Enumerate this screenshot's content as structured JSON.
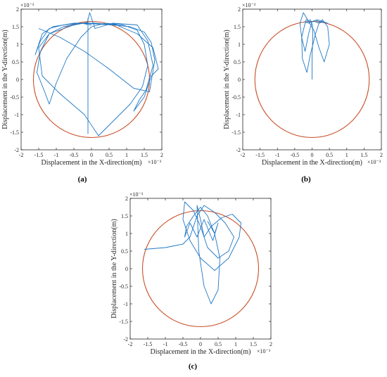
{
  "figure": {
    "panels": [
      {
        "label": "(a)"
      },
      {
        "label": "(b)"
      },
      {
        "label": "(c)"
      }
    ]
  },
  "colors": {
    "trajectory": "#1f77c4",
    "boundary": "#c8502a",
    "axes": "#262626",
    "label_text": "#000000"
  },
  "chart_data": [
    {
      "type": "line",
      "panel": "(a)",
      "xlabel": "Displacement in the X-direction(m)",
      "ylabel": "Displacement in the Y-direction(m)",
      "x_exponent": "×10⁻³",
      "y_exponent": "×10⁻³",
      "xlim": [
        -2,
        2
      ],
      "ylim": [
        -2,
        2
      ],
      "xticks": [
        "-2",
        "-1.5",
        "-1",
        "-0.5",
        "0",
        "0.5",
        "1",
        "1.5",
        "2"
      ],
      "yticks": [
        "-2",
        "-1.5",
        "-1",
        "-0.5",
        "0",
        "0.5",
        "1",
        "1.5",
        "2"
      ],
      "circle": {
        "cx": 0,
        "cy": 0,
        "r": 1.65
      },
      "series": [
        {
          "x": [
            0.0,
            -0.3,
            -0.8,
            -1.2,
            -1.45,
            -1.55,
            -1.35,
            -1.2,
            -1.0,
            -0.7,
            -0.3,
            0.0,
            0.4,
            0.9,
            1.3,
            1.5,
            1.6,
            1.45,
            1.1,
            0.6,
            0.2,
            -0.2,
            -0.9,
            -1.4,
            -1.5,
            -1.2,
            -0.5,
            -0.12,
            -0.05,
            0.1,
            0.6,
            1.3,
            1.6,
            1.75,
            1.55,
            1.35,
            1.2,
            1.5,
            1.7,
            1.9,
            1.75,
            1.3,
            0.7,
            0.1,
            -0.5,
            -1.1,
            -1.4,
            -1.6,
            -1.45,
            -1.2,
            -0.8,
            -0.4,
            0.1,
            0.6,
            1.1,
            1.5,
            1.7,
            1.8,
            1.65,
            1.2,
            0.5,
            -0.2,
            -0.9,
            -1.5
          ],
          "y": [
            1.55,
            1.6,
            1.5,
            1.3,
            0.8,
            0.2,
            -0.3,
            -0.7,
            -0.1,
            0.6,
            1.2,
            1.5,
            1.6,
            1.55,
            1.4,
            1.0,
            0.4,
            -0.2,
            -0.7,
            -1.2,
            -1.6,
            -1.0,
            -0.4,
            0.1,
            0.9,
            1.3,
            1.55,
            1.62,
            1.9,
            1.45,
            1.6,
            1.55,
            1.1,
            0.4,
            -0.3,
            -0.6,
            -0.9,
            -0.5,
            0.1,
            0.3,
            0.9,
            1.3,
            1.55,
            1.6,
            1.6,
            1.5,
            1.3,
            0.7,
            1.1,
            1.45,
            1.55,
            1.6,
            1.58,
            1.55,
            1.5,
            1.35,
            1.05,
            0.55,
            -0.35,
            -0.25,
            0.3,
            0.8,
            1.2,
            1.45
          ]
        },
        {
          "x": [
            -0.1,
            -0.1,
            -0.1,
            -0.1
          ],
          "y": [
            -1.55,
            0.0,
            1.0,
            1.75
          ]
        }
      ]
    },
    {
      "type": "line",
      "panel": "(b)",
      "xlabel": "Displacement in the X-direction(m)",
      "ylabel": "Displacement in the Y-direction(m)",
      "x_exponent": "×10⁻³",
      "y_exponent": "×10⁻³",
      "xlim": [
        -2,
        2
      ],
      "ylim": [
        -2,
        2
      ],
      "xticks": [
        "-2",
        "-1.5",
        "-1",
        "-0.5",
        "0",
        "0.5",
        "1",
        "1.5",
        "2"
      ],
      "yticks": [
        "-2",
        "-1.5",
        "-1",
        "-0.5",
        "0",
        "0.5",
        "1",
        "1.5",
        "2"
      ],
      "circle": {
        "cx": 0,
        "cy": 0,
        "r": 1.65
      },
      "series": [
        {
          "x": [
            0.0,
            0.0,
            0.02,
            0.01,
            -0.05,
            -0.2,
            -0.3,
            -0.28,
            -0.15,
            -0.05,
            0.1,
            0.2,
            0.3,
            0.45,
            0.5,
            0.35,
            0.2,
            0.05,
            -0.1,
            -0.25,
            -0.35,
            -0.3,
            -0.2,
            -0.1,
            0.0,
            0.15,
            0.3,
            0.45,
            0.35,
            0.1,
            -0.1,
            -0.2,
            -0.15,
            -0.05,
            0.05,
            0.2,
            0.3
          ],
          "y": [
            0.0,
            0.6,
            1.2,
            1.55,
            1.7,
            1.6,
            1.2,
            0.6,
            0.2,
            0.7,
            1.3,
            1.6,
            1.7,
            1.5,
            1.0,
            0.5,
            0.9,
            1.4,
            1.65,
            1.9,
            1.6,
            1.2,
            0.8,
            1.3,
            1.65,
            1.7,
            1.65,
            1.6,
            1.62,
            1.68,
            1.6,
            1.65,
            1.7,
            1.62,
            1.66,
            1.6,
            1.64
          ]
        }
      ]
    },
    {
      "type": "line",
      "panel": "(c)",
      "xlabel": "Displacement in the X-direction(m)",
      "ylabel": "Displacement in the Y-direction(m)",
      "x_exponent": "×10⁻³",
      "y_exponent": "×10⁻³",
      "xlim": [
        -2,
        2
      ],
      "ylim": [
        -2,
        2
      ],
      "xticks": [
        "-2",
        "-1.5",
        "-1",
        "-0.5",
        "0",
        "0.5",
        "1",
        "1.5",
        "2"
      ],
      "yticks": [
        "-2",
        "-1.5",
        "-1",
        "-0.5",
        "0",
        "0.5",
        "1",
        "1.5",
        "2"
      ],
      "circle": {
        "cx": 0,
        "cy": 0,
        "r": 1.65
      },
      "series": [
        {
          "x": [
            -1.6,
            -1.0,
            -0.5,
            -0.3,
            -0.1,
            0.1,
            0.4,
            0.7,
            0.95,
            0.8,
            0.5,
            0.2,
            0.0,
            -0.2,
            -0.45,
            -0.5,
            -0.3,
            0.0,
            0.4,
            0.8,
            1.1,
            1.15,
            0.9,
            0.6,
            0.3,
            0.1,
            0.0,
            -0.1,
            -0.05,
            0.1,
            0.3,
            0.5,
            0.55,
            0.4,
            0.2,
            0.0,
            -0.2,
            -0.4,
            -0.45,
            -0.3,
            -0.1,
            0.1,
            0.35,
            0.5,
            0.4,
            0.2
          ],
          "y": [
            0.55,
            0.6,
            0.7,
            0.9,
            1.5,
            1.8,
            1.6,
            1.3,
            0.9,
            0.5,
            0.3,
            0.6,
            1.2,
            1.65,
            1.9,
            1.4,
            0.8,
            0.3,
            -0.05,
            0.3,
            0.9,
            1.3,
            1.55,
            1.45,
            1.2,
            0.9,
            1.4,
            1.8,
            0.5,
            -0.5,
            -1.0,
            -0.6,
            0.3,
            1.0,
            1.5,
            1.75,
            1.5,
            1.2,
            0.9,
            1.3,
            0.9,
            1.4,
            0.8,
            1.3,
            1.0,
            1.35
          ]
        }
      ]
    }
  ]
}
